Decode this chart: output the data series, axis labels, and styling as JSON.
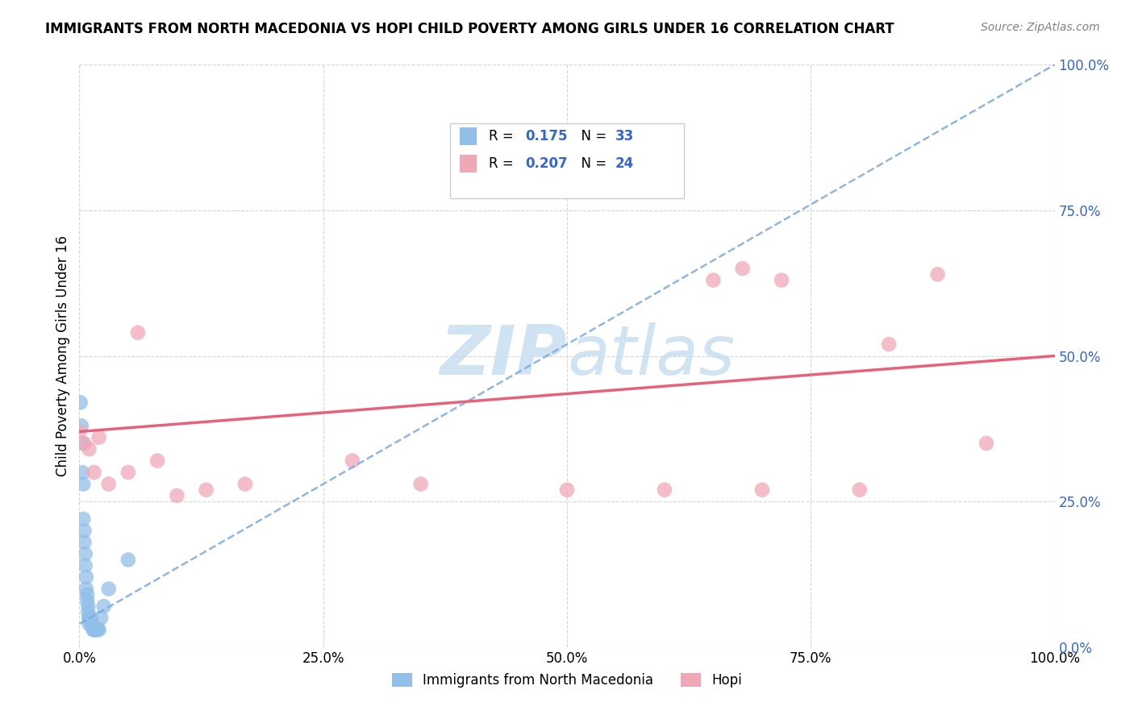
{
  "title": "IMMIGRANTS FROM NORTH MACEDONIA VS HOPI CHILD POVERTY AMONG GIRLS UNDER 16 CORRELATION CHART",
  "source": "Source: ZipAtlas.com",
  "ylabel": "Child Poverty Among Girls Under 16",
  "xlim": [
    0,
    1.0
  ],
  "ylim": [
    0,
    1.0
  ],
  "xtick_vals": [
    0.0,
    0.25,
    0.5,
    0.75,
    1.0
  ],
  "xtick_labels": [
    "0.0%",
    "25.0%",
    "50.0%",
    "75.0%",
    "100.0%"
  ],
  "ytick_vals": [
    0.0,
    0.25,
    0.5,
    0.75,
    1.0
  ],
  "ytick_labels": [
    "0.0%",
    "25.0%",
    "50.0%",
    "75.0%",
    "100.0%"
  ],
  "R_blue": 0.175,
  "N_blue": 33,
  "R_pink": 0.207,
  "N_pink": 24,
  "blue_color": "#92bfe8",
  "pink_color": "#f0a8b8",
  "blue_line_color": "#7aaadd",
  "pink_line_color": "#e8607a",
  "label_color": "#3366cc",
  "watermark_color": "#c8dff0",
  "blue_scatter_x": [
    0.001,
    0.002,
    0.003,
    0.003,
    0.004,
    0.004,
    0.005,
    0.005,
    0.006,
    0.006,
    0.007,
    0.007,
    0.008,
    0.008,
    0.009,
    0.009,
    0.01,
    0.01,
    0.01,
    0.012,
    0.012,
    0.013,
    0.014,
    0.015,
    0.016,
    0.017,
    0.018,
    0.019,
    0.02,
    0.022,
    0.025,
    0.03,
    0.05
  ],
  "blue_scatter_y": [
    0.42,
    0.38,
    0.35,
    0.3,
    0.28,
    0.22,
    0.2,
    0.18,
    0.16,
    0.14,
    0.12,
    0.1,
    0.09,
    0.08,
    0.07,
    0.06,
    0.05,
    0.05,
    0.04,
    0.05,
    0.04,
    0.04,
    0.03,
    0.03,
    0.03,
    0.03,
    0.03,
    0.03,
    0.03,
    0.05,
    0.07,
    0.1,
    0.15
  ],
  "pink_scatter_x": [
    0.0,
    0.005,
    0.01,
    0.015,
    0.02,
    0.03,
    0.05,
    0.06,
    0.08,
    0.1,
    0.13,
    0.17,
    0.28,
    0.35,
    0.5,
    0.6,
    0.65,
    0.68,
    0.7,
    0.72,
    0.8,
    0.83,
    0.88,
    0.93
  ],
  "pink_scatter_y": [
    0.37,
    0.35,
    0.34,
    0.3,
    0.36,
    0.28,
    0.3,
    0.54,
    0.32,
    0.26,
    0.27,
    0.28,
    0.32,
    0.28,
    0.27,
    0.27,
    0.63,
    0.65,
    0.27,
    0.63,
    0.27,
    0.52,
    0.64,
    0.35
  ],
  "blue_trend_x0": 0.0,
  "blue_trend_x1": 1.0,
  "blue_trend_y0": 0.04,
  "blue_trend_y1": 1.0,
  "pink_trend_x0": 0.0,
  "pink_trend_x1": 1.0,
  "pink_trend_y0": 0.37,
  "pink_trend_y1": 0.5
}
